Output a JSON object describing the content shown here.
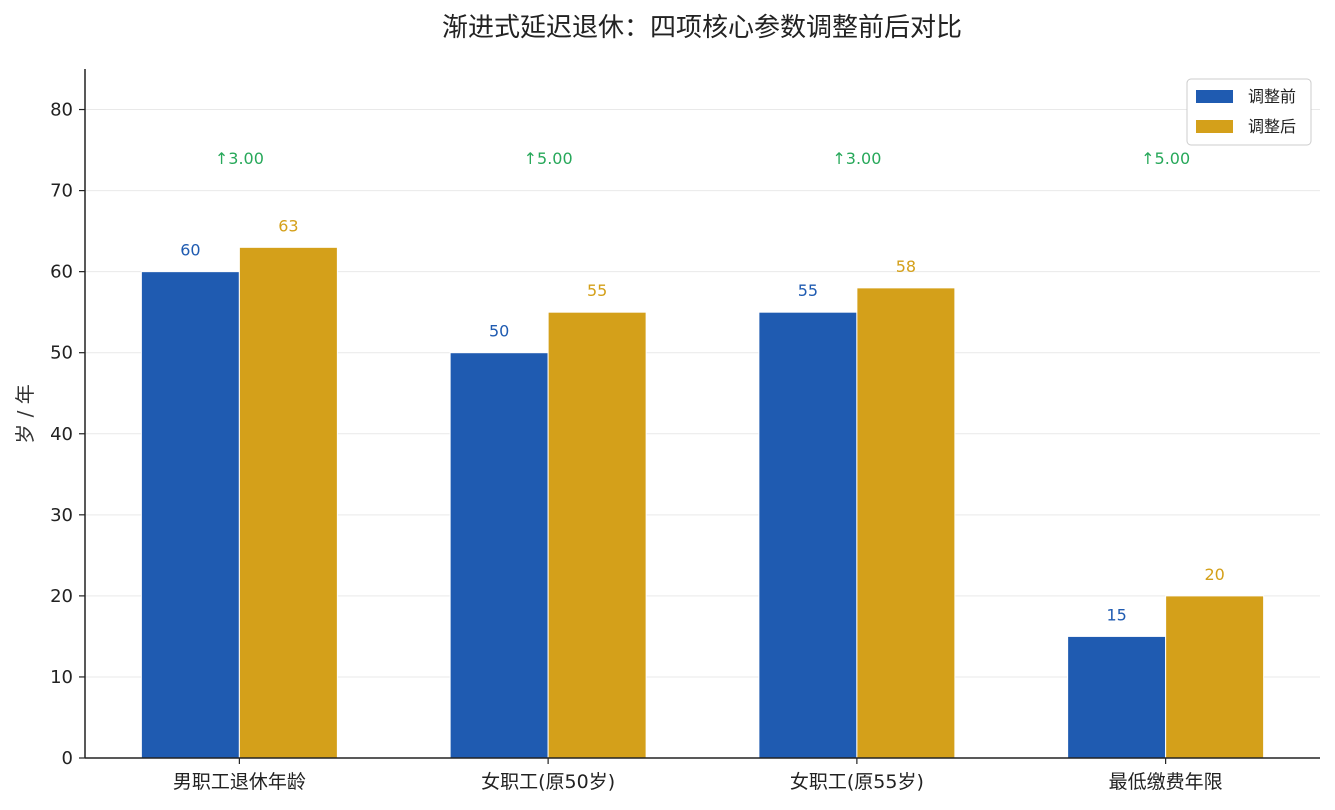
{
  "chart_data": {
    "type": "bar",
    "title": "渐进式延迟退休：四项核心参数调整前后对比",
    "xlabel": "",
    "ylabel": "岁 / 年",
    "ylim": [
      0,
      85
    ],
    "yticks": [
      0,
      10,
      20,
      30,
      40,
      50,
      60,
      70,
      80
    ],
    "grid": "horizontal",
    "legend_position": "top-right",
    "categories": [
      "男职工退休年龄",
      "女职工(原50岁)",
      "女职工(原55岁)",
      "最低缴费年限"
    ],
    "series": [
      {
        "name": "调整前",
        "color": "#1f5bb1",
        "values": [
          60,
          50,
          55,
          15
        ]
      },
      {
        "name": "调整后",
        "color": "#d4a01a",
        "values": [
          63,
          55,
          58,
          20
        ]
      }
    ],
    "annotations": {
      "color": "#27a85a",
      "level": 74,
      "labels": [
        "↑3.00",
        "↑5.00",
        "↑3.00",
        "↑5.00"
      ]
    }
  }
}
